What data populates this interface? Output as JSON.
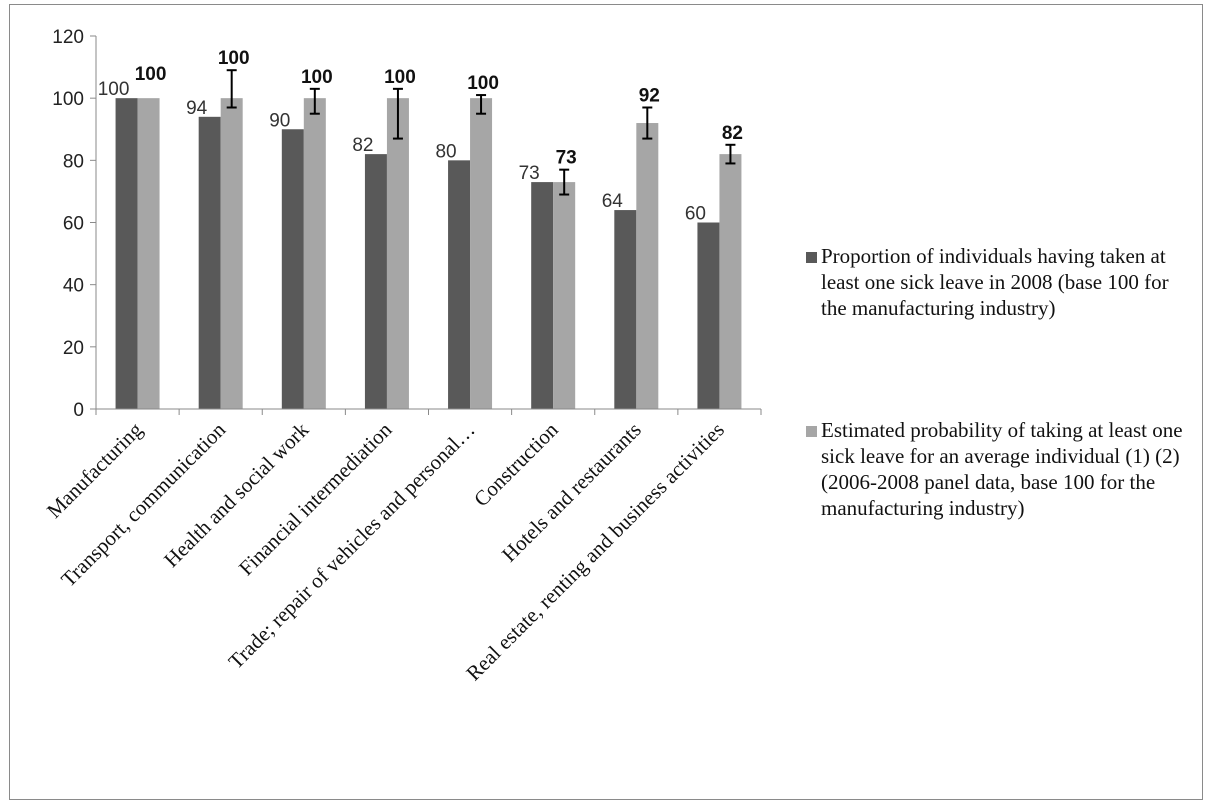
{
  "chart_data": {
    "type": "bar",
    "categories": [
      "Manufacturing",
      "Transport, communication",
      "Health and social work",
      "Financial intermediation",
      "Trade; repair of vehicles and personal…",
      "Construction",
      "Hotels and restaurants",
      "Real estate, renting and business activities"
    ],
    "series": [
      {
        "name": "Proportion of individuals having taken at least one sick leave in 2008 (base 100 for the manufacturing industry)",
        "values": [
          100,
          94,
          90,
          82,
          80,
          73,
          64,
          60
        ],
        "labels": [
          "100",
          "94",
          "90",
          "82",
          "80",
          "73",
          "64",
          "60"
        ],
        "color": "#595959"
      },
      {
        "name": "Estimated probability of taking at least one sick leave for an average individual (1) (2) (2006-2008 panel data, base 100 for the manufacturing industry)",
        "values": [
          100,
          100,
          100,
          100,
          100,
          73,
          92,
          82
        ],
        "labels": [
          "100",
          "100",
          "100",
          "100",
          "100",
          "73",
          "92",
          "82"
        ],
        "error_low": [
          null,
          97,
          95,
          87,
          95,
          69,
          87,
          79
        ],
        "error_high": [
          null,
          109,
          103,
          103,
          101,
          77,
          97,
          85
        ],
        "color": "#a6a6a6"
      }
    ],
    "yticks": [
      "0",
      "20",
      "40",
      "60",
      "80",
      "100",
      "120"
    ],
    "ylim": [
      0,
      120
    ],
    "legend_position": "right",
    "grid": false
  }
}
